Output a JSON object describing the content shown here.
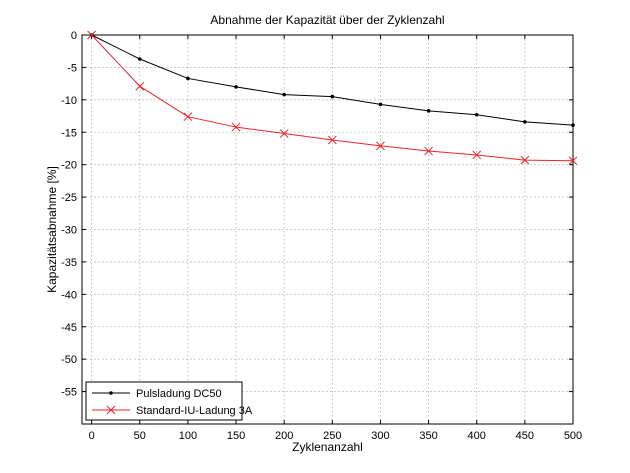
{
  "chart_data": {
    "type": "line",
    "title": "Abnahme der Kapazität über der Zyklenzahl",
    "xlabel": "Zyklenanzahl",
    "ylabel": "Kapazitätsabnahme [%]",
    "xlim": [
      -10,
      500
    ],
    "ylim": [
      -60,
      0
    ],
    "xticks": [
      0,
      50,
      100,
      150,
      200,
      250,
      300,
      350,
      400,
      450,
      500
    ],
    "yticks": [
      0,
      -5,
      -10,
      -15,
      -20,
      -25,
      -30,
      -35,
      -40,
      -45,
      -50,
      -55
    ],
    "grid": true,
    "legend_position": "bottom-left",
    "x": [
      0,
      50,
      100,
      150,
      200,
      250,
      300,
      350,
      400,
      450,
      500
    ],
    "series": [
      {
        "name": "Pulsladung DC50",
        "color": "#000000",
        "marker": "dot",
        "values": [
          0,
          -3.7,
          -6.7,
          -8.0,
          -9.2,
          -9.5,
          -10.7,
          -11.7,
          -12.3,
          -13.4,
          -13.9
        ]
      },
      {
        "name": "Standard-IU-Ladung 3A",
        "color": "#e8262a",
        "marker": "x",
        "values": [
          0,
          -7.9,
          -12.6,
          -14.2,
          -15.2,
          -16.2,
          -17.1,
          -17.9,
          -18.5,
          -19.3,
          -19.4
        ]
      }
    ]
  }
}
